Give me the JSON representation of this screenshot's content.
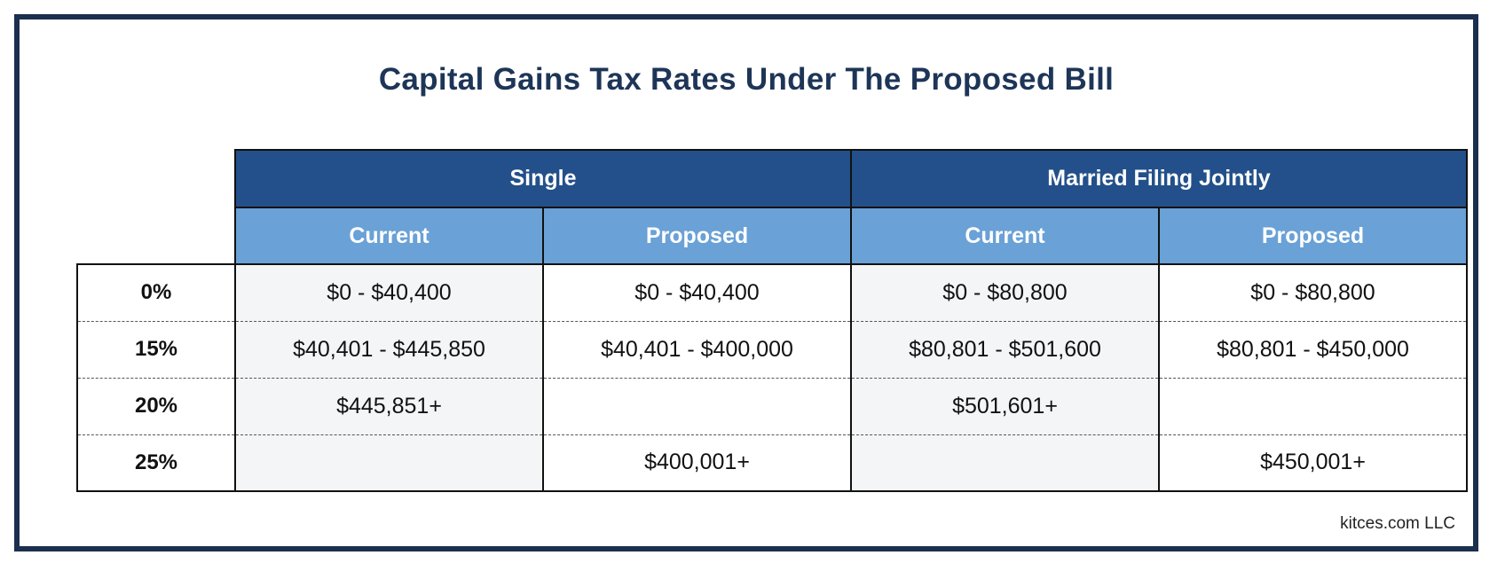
{
  "title": "Capital Gains Tax Rates Under The Proposed Bill",
  "groups": [
    "Single",
    "Married Filing Jointly"
  ],
  "subheaders": [
    "Current",
    "Proposed",
    "Current",
    "Proposed"
  ],
  "rows": [
    {
      "rate": "0%",
      "cells": [
        "$0 - $40,400",
        "$0 - $40,400",
        "$0 - $80,800",
        "$0 - $80,800"
      ]
    },
    {
      "rate": "15%",
      "cells": [
        "$40,401 - $445,850",
        "$40,401 - $400,000",
        "$80,801 - $501,600",
        "$80,801 - $450,000"
      ]
    },
    {
      "rate": "20%",
      "cells": [
        "$445,851+",
        "",
        "$501,601+",
        ""
      ]
    },
    {
      "rate": "25%",
      "cells": [
        "",
        "$400,001+",
        "",
        "$450,001+"
      ]
    }
  ],
  "credit": "kitces.com LLC"
}
